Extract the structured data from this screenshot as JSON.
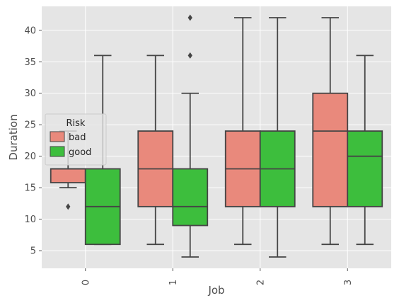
{
  "chart_data": {
    "type": "box",
    "xlabel": "Job",
    "ylabel": "Duration",
    "categories": [
      "0",
      "1",
      "2",
      "3"
    ],
    "ylim": [
      2.2,
      43.8
    ],
    "yticks": [
      5,
      10,
      15,
      20,
      25,
      30,
      35,
      40
    ],
    "grid": true,
    "legend": {
      "title": "Risk",
      "placement": "center-left"
    },
    "series": [
      {
        "name": "bad",
        "color": "#E9897C",
        "boxes": [
          {
            "category": "0",
            "whisker_low": 15,
            "q1": 15.8,
            "median": 18,
            "q3": 18,
            "whisker_high": 24,
            "outliers": [
              12
            ]
          },
          {
            "category": "1",
            "whisker_low": 6,
            "q1": 12,
            "median": 18,
            "q3": 24,
            "whisker_high": 36,
            "outliers": []
          },
          {
            "category": "2",
            "whisker_low": 6,
            "q1": 12,
            "median": 18,
            "q3": 24,
            "whisker_high": 42,
            "outliers": []
          },
          {
            "category": "3",
            "whisker_low": 6,
            "q1": 12,
            "median": 24,
            "q3": 30,
            "whisker_high": 42,
            "outliers": []
          }
        ]
      },
      {
        "name": "good",
        "color": "#3DBE3D",
        "boxes": [
          {
            "category": "0",
            "whisker_low": 6,
            "q1": 6,
            "median": 12,
            "q3": 18,
            "whisker_high": 36,
            "outliers": []
          },
          {
            "category": "1",
            "whisker_low": 4,
            "q1": 9,
            "median": 12,
            "q3": 18,
            "whisker_high": 30,
            "outliers": [
              36,
              42
            ]
          },
          {
            "category": "2",
            "whisker_low": 4,
            "q1": 12,
            "median": 18,
            "q3": 24,
            "whisker_high": 42,
            "outliers": []
          },
          {
            "category": "3",
            "whisker_low": 6,
            "q1": 12,
            "median": 20,
            "q3": 24,
            "whisker_high": 36,
            "outliers": []
          }
        ]
      }
    ]
  }
}
